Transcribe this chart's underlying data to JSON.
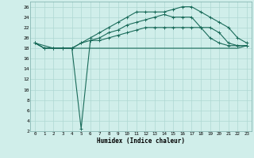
{
  "xlabel": "Humidex (Indice chaleur)",
  "xlim": [
    -0.5,
    23.5
  ],
  "ylim": [
    2,
    27
  ],
  "xticks": [
    0,
    1,
    2,
    3,
    4,
    5,
    6,
    7,
    8,
    9,
    10,
    11,
    12,
    13,
    14,
    15,
    16,
    17,
    18,
    19,
    20,
    21,
    22,
    23
  ],
  "yticks": [
    2,
    4,
    6,
    8,
    10,
    12,
    14,
    16,
    18,
    20,
    22,
    24,
    26
  ],
  "bg_color": "#d0eeea",
  "grid_color": "#aed8d2",
  "line_color": "#1a6b5a",
  "line1_y": [
    19,
    18,
    18,
    18,
    18,
    19,
    20,
    21,
    22,
    23,
    24,
    25,
    25,
    25,
    25,
    25.5,
    26,
    26,
    25,
    24,
    23,
    22,
    20,
    19
  ],
  "line2_y": [
    19,
    18,
    18,
    18,
    18,
    19,
    19.5,
    20,
    21,
    21.5,
    22.5,
    23,
    23.5,
    24,
    24.5,
    24,
    24,
    24,
    22,
    20,
    19,
    18.5,
    18.5,
    18.5
  ],
  "line3_y": [
    19,
    18,
    18,
    18,
    18,
    2.5,
    19.5,
    19.5,
    20,
    20.5,
    21,
    21.5,
    22,
    22,
    22,
    22,
    22,
    22,
    22,
    22,
    21,
    19,
    18.5,
    18.5
  ],
  "line4_y": [
    19,
    18.5,
    18,
    18,
    18,
    18,
    18,
    18,
    18,
    18,
    18,
    18,
    18,
    18,
    18,
    18,
    18,
    18,
    18,
    18,
    18,
    18,
    18,
    18.5
  ]
}
